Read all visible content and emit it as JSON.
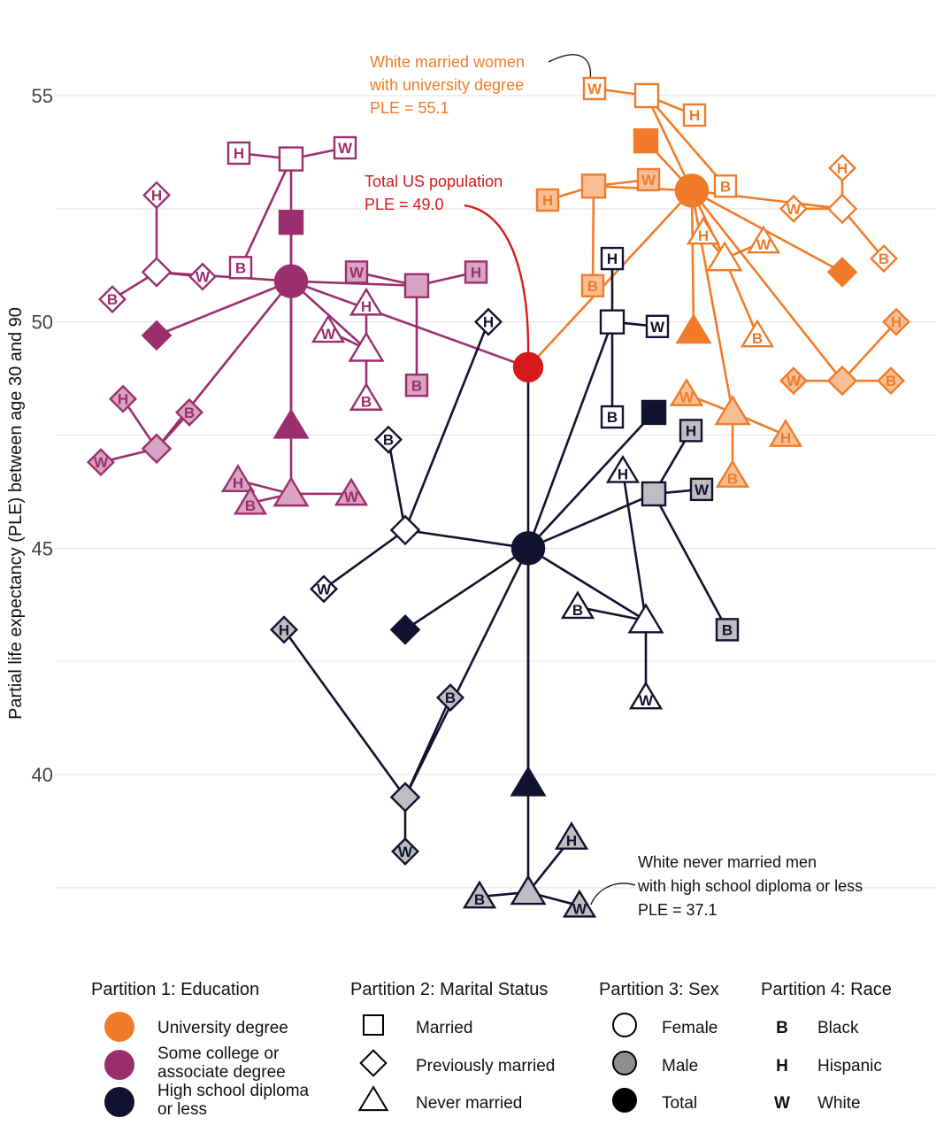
{
  "chart_data": {
    "type": "tree-scatter",
    "ylabel": "Partial life expectancy (PLE) between age 30 and 90",
    "ylim": [
      36.5,
      56.5
    ],
    "yticks": [
      40,
      45,
      50,
      55
    ],
    "grid": true,
    "colors": {
      "university": "#F07C29",
      "some_college": "#9B2F6E",
      "high_school": "#121230",
      "total_us": "#D7191C",
      "male_fill": "#BDBDC2"
    },
    "nodes": [
      {
        "id": "root",
        "y": 49.0,
        "lvl": 0,
        "g": "total"
      },
      {
        "id": "U",
        "y": 52.9,
        "lvl": 1,
        "g": "U"
      },
      {
        "id": "S",
        "y": 50.9,
        "lvl": 1,
        "g": "S"
      },
      {
        "id": "HS",
        "y": 45.0,
        "lvl": 1,
        "g": "HS"
      },
      {
        "id": "U_M",
        "y": 54.0,
        "lvl": 2,
        "g": "U",
        "m": "M"
      },
      {
        "id": "U_P",
        "y": 51.1,
        "lvl": 2,
        "g": "U",
        "m": "P"
      },
      {
        "id": "U_N",
        "y": 49.8,
        "lvl": 2,
        "g": "U",
        "m": "N"
      },
      {
        "id": "U_MF",
        "y": 55.0,
        "lvl": 3,
        "g": "U",
        "m": "M",
        "s": "F"
      },
      {
        "id": "U_MM",
        "y": 53.0,
        "lvl": 3,
        "g": "U",
        "m": "M",
        "s": "M"
      },
      {
        "id": "U_PF",
        "y": 52.5,
        "lvl": 3,
        "g": "U",
        "m": "P",
        "s": "F"
      },
      {
        "id": "U_PM",
        "y": 48.7,
        "lvl": 3,
        "g": "U",
        "m": "P",
        "s": "M"
      },
      {
        "id": "U_NF",
        "y": 51.4,
        "lvl": 3,
        "g": "U",
        "m": "N",
        "s": "F"
      },
      {
        "id": "U_NM",
        "y": 48.0,
        "lvl": 3,
        "g": "U",
        "m": "N",
        "s": "M"
      },
      {
        "id": "U_MF_W",
        "y": 55.1,
        "lvl": 4,
        "g": "U",
        "m": "M",
        "s": "F",
        "r": "W"
      },
      {
        "id": "U_MF_H",
        "y": 54.6,
        "lvl": 4,
        "g": "U",
        "m": "M",
        "s": "F",
        "r": "H"
      },
      {
        "id": "U_MF_B",
        "y": 53.0,
        "lvl": 4,
        "g": "U",
        "m": "M",
        "s": "F",
        "r": "B"
      },
      {
        "id": "U_MM_W",
        "y": 53.2,
        "lvl": 4,
        "g": "U",
        "m": "M",
        "s": "M",
        "r": "W"
      },
      {
        "id": "U_MM_H",
        "y": 52.7,
        "lvl": 4,
        "g": "U",
        "m": "M",
        "s": "M",
        "r": "H"
      },
      {
        "id": "U_MM_B",
        "y": 50.8,
        "lvl": 4,
        "g": "U",
        "m": "M",
        "s": "M",
        "r": "B"
      },
      {
        "id": "U_PF_H",
        "y": 53.4,
        "lvl": 4,
        "g": "U",
        "m": "P",
        "s": "F",
        "r": "H"
      },
      {
        "id": "U_PF_W",
        "y": 52.5,
        "lvl": 4,
        "g": "U",
        "m": "P",
        "s": "F",
        "r": "W"
      },
      {
        "id": "U_PF_B",
        "y": 51.4,
        "lvl": 4,
        "g": "U",
        "m": "P",
        "s": "F",
        "r": "B"
      },
      {
        "id": "U_PM_H",
        "y": 50.0,
        "lvl": 4,
        "g": "U",
        "m": "P",
        "s": "M",
        "r": "H"
      },
      {
        "id": "U_PM_W",
        "y": 48.7,
        "lvl": 4,
        "g": "U",
        "m": "P",
        "s": "M",
        "r": "W"
      },
      {
        "id": "U_PM_B",
        "y": 48.7,
        "lvl": 4,
        "g": "U",
        "m": "P",
        "s": "M",
        "r": "B"
      },
      {
        "id": "U_NF_H",
        "y": 52.0,
        "lvl": 4,
        "g": "U",
        "m": "N",
        "s": "F",
        "r": "H"
      },
      {
        "id": "U_NF_W",
        "y": 51.8,
        "lvl": 4,
        "g": "U",
        "m": "N",
        "s": "F",
        "r": "W"
      },
      {
        "id": "U_NF_B",
        "y": 49.7,
        "lvl": 4,
        "g": "U",
        "m": "N",
        "s": "F",
        "r": "B"
      },
      {
        "id": "U_NM_W",
        "y": 48.4,
        "lvl": 4,
        "g": "U",
        "m": "N",
        "s": "M",
        "r": "W"
      },
      {
        "id": "U_NM_H",
        "y": 47.5,
        "lvl": 4,
        "g": "U",
        "m": "N",
        "s": "M",
        "r": "H"
      },
      {
        "id": "U_NM_B",
        "y": 46.6,
        "lvl": 4,
        "g": "U",
        "m": "N",
        "s": "M",
        "r": "B"
      },
      {
        "id": "S_M",
        "y": 52.2,
        "lvl": 2,
        "g": "S",
        "m": "M"
      },
      {
        "id": "S_P",
        "y": 49.7,
        "lvl": 2,
        "g": "S",
        "m": "P"
      },
      {
        "id": "S_N",
        "y": 47.7,
        "lvl": 2,
        "g": "S",
        "m": "N"
      },
      {
        "id": "S_MF",
        "y": 53.6,
        "lvl": 3,
        "g": "S",
        "m": "M",
        "s": "F"
      },
      {
        "id": "S_MM",
        "y": 50.8,
        "lvl": 3,
        "g": "S",
        "m": "M",
        "s": "M"
      },
      {
        "id": "S_PF",
        "y": 51.1,
        "lvl": 3,
        "g": "S",
        "m": "P",
        "s": "F"
      },
      {
        "id": "S_PM",
        "y": 47.2,
        "lvl": 3,
        "g": "S",
        "m": "P",
        "s": "M"
      },
      {
        "id": "S_NF",
        "y": 49.4,
        "lvl": 3,
        "g": "S",
        "m": "N",
        "s": "F"
      },
      {
        "id": "S_NM",
        "y": 46.2,
        "lvl": 3,
        "g": "S",
        "m": "N",
        "s": "M"
      },
      {
        "id": "S_MF_H",
        "y": 53.7,
        "lvl": 4,
        "g": "S",
        "m": "M",
        "s": "F",
        "r": "H"
      },
      {
        "id": "S_MF_W",
        "y": 53.9,
        "lvl": 4,
        "g": "S",
        "m": "M",
        "s": "F",
        "r": "W"
      },
      {
        "id": "S_MF_B",
        "y": 51.2,
        "lvl": 4,
        "g": "S",
        "m": "M",
        "s": "F",
        "r": "B"
      },
      {
        "id": "S_MM_W",
        "y": 51.1,
        "lvl": 4,
        "g": "S",
        "m": "M",
        "s": "M",
        "r": "W"
      },
      {
        "id": "S_MM_H",
        "y": 51.1,
        "lvl": 4,
        "g": "S",
        "m": "M",
        "s": "M",
        "r": "H"
      },
      {
        "id": "S_MM_B",
        "y": 48.6,
        "lvl": 4,
        "g": "S",
        "m": "M",
        "s": "M",
        "r": "B"
      },
      {
        "id": "S_PF_H",
        "y": 52.8,
        "lvl": 4,
        "g": "S",
        "m": "P",
        "s": "F",
        "r": "H"
      },
      {
        "id": "S_PF_B",
        "y": 50.5,
        "lvl": 4,
        "g": "S",
        "m": "P",
        "s": "F",
        "r": "B"
      },
      {
        "id": "S_PF_W",
        "y": 51.0,
        "lvl": 4,
        "g": "S",
        "m": "P",
        "s": "F",
        "r": "W"
      },
      {
        "id": "S_PM_H",
        "y": 48.3,
        "lvl": 4,
        "g": "S",
        "m": "P",
        "s": "M",
        "r": "H"
      },
      {
        "id": "S_PM_B",
        "y": 48.0,
        "lvl": 4,
        "g": "S",
        "m": "P",
        "s": "M",
        "r": "B"
      },
      {
        "id": "S_PM_W",
        "y": 46.9,
        "lvl": 4,
        "g": "S",
        "m": "P",
        "s": "M",
        "r": "W"
      },
      {
        "id": "S_NF_H",
        "y": 50.4,
        "lvl": 4,
        "g": "S",
        "m": "N",
        "s": "F",
        "r": "H"
      },
      {
        "id": "S_NF_W",
        "y": 49.8,
        "lvl": 4,
        "g": "S",
        "m": "N",
        "s": "F",
        "r": "W"
      },
      {
        "id": "S_NF_B",
        "y": 48.3,
        "lvl": 4,
        "g": "S",
        "m": "N",
        "s": "F",
        "r": "B"
      },
      {
        "id": "S_NM_H",
        "y": 46.5,
        "lvl": 4,
        "g": "S",
        "m": "N",
        "s": "M",
        "r": "H"
      },
      {
        "id": "S_NM_B",
        "y": 46.0,
        "lvl": 4,
        "g": "S",
        "m": "N",
        "s": "M",
        "r": "B"
      },
      {
        "id": "S_NM_W",
        "y": 46.2,
        "lvl": 4,
        "g": "S",
        "m": "N",
        "s": "M",
        "r": "W"
      },
      {
        "id": "HS_M",
        "y": 48.0,
        "lvl": 2,
        "g": "HS",
        "m": "M"
      },
      {
        "id": "HS_P",
        "y": 43.2,
        "lvl": 2,
        "g": "HS",
        "m": "P"
      },
      {
        "id": "HS_N",
        "y": 39.8,
        "lvl": 2,
        "g": "HS",
        "m": "N"
      },
      {
        "id": "HS_MF",
        "y": 50.0,
        "lvl": 3,
        "g": "HS",
        "m": "M",
        "s": "F"
      },
      {
        "id": "HS_MM",
        "y": 46.2,
        "lvl": 3,
        "g": "HS",
        "m": "M",
        "s": "M"
      },
      {
        "id": "HS_PF",
        "y": 45.4,
        "lvl": 3,
        "g": "HS",
        "m": "P",
        "s": "F"
      },
      {
        "id": "HS_PM",
        "y": 39.5,
        "lvl": 3,
        "g": "HS",
        "m": "P",
        "s": "M"
      },
      {
        "id": "HS_NF",
        "y": 43.4,
        "lvl": 3,
        "g": "HS",
        "m": "N",
        "s": "F"
      },
      {
        "id": "HS_NM",
        "y": 37.4,
        "lvl": 3,
        "g": "HS",
        "m": "N",
        "s": "M"
      },
      {
        "id": "HS_MF_H",
        "y": 51.4,
        "lvl": 4,
        "g": "HS",
        "m": "M",
        "s": "F",
        "r": "H"
      },
      {
        "id": "HS_MF_W",
        "y": 49.9,
        "lvl": 4,
        "g": "HS",
        "m": "M",
        "s": "F",
        "r": "W"
      },
      {
        "id": "HS_MF_B",
        "y": 47.9,
        "lvl": 4,
        "g": "HS",
        "m": "M",
        "s": "F",
        "r": "B"
      },
      {
        "id": "HS_MM_H",
        "y": 47.6,
        "lvl": 4,
        "g": "HS",
        "m": "M",
        "s": "M",
        "r": "H"
      },
      {
        "id": "HS_MM_W",
        "y": 46.3,
        "lvl": 4,
        "g": "HS",
        "m": "M",
        "s": "M",
        "r": "W"
      },
      {
        "id": "HS_MM_B",
        "y": 43.2,
        "lvl": 4,
        "g": "HS",
        "m": "M",
        "s": "M",
        "r": "B"
      },
      {
        "id": "HS_PF_H",
        "y": 50.0,
        "lvl": 4,
        "g": "HS",
        "m": "P",
        "s": "F",
        "r": "H"
      },
      {
        "id": "HS_PF_B",
        "y": 47.4,
        "lvl": 4,
        "g": "HS",
        "m": "P",
        "s": "F",
        "r": "B"
      },
      {
        "id": "HS_PF_W",
        "y": 44.1,
        "lvl": 4,
        "g": "HS",
        "m": "P",
        "s": "F",
        "r": "W"
      },
      {
        "id": "HS_PM_H",
        "y": 43.2,
        "lvl": 4,
        "g": "HS",
        "m": "P",
        "s": "M",
        "r": "H"
      },
      {
        "id": "HS_PM_B",
        "y": 41.7,
        "lvl": 4,
        "g": "HS",
        "m": "P",
        "s": "M",
        "r": "B"
      },
      {
        "id": "HS_PM_W",
        "y": 38.3,
        "lvl": 4,
        "g": "HS",
        "m": "P",
        "s": "M",
        "r": "W"
      },
      {
        "id": "HS_NF_H",
        "y": 46.7,
        "lvl": 4,
        "g": "HS",
        "m": "N",
        "s": "F",
        "r": "H"
      },
      {
        "id": "HS_NF_B",
        "y": 43.7,
        "lvl": 4,
        "g": "HS",
        "m": "N",
        "s": "F",
        "r": "B"
      },
      {
        "id": "HS_NF_W",
        "y": 41.7,
        "lvl": 4,
        "g": "HS",
        "m": "N",
        "s": "F",
        "r": "W"
      },
      {
        "id": "HS_NM_H",
        "y": 38.6,
        "lvl": 4,
        "g": "HS",
        "m": "N",
        "s": "M",
        "r": "H"
      },
      {
        "id": "HS_NM_B",
        "y": 37.3,
        "lvl": 4,
        "g": "HS",
        "m": "N",
        "s": "M",
        "r": "B"
      },
      {
        "id": "HS_NM_W",
        "y": 37.1,
        "lvl": 4,
        "g": "HS",
        "m": "N",
        "s": "M",
        "r": "W"
      }
    ],
    "annotations": [
      {
        "id": "white-married-women",
        "lines": [
          "White married women",
          "with university degree",
          "PLE = 55.1"
        ],
        "color": "#F07C29"
      },
      {
        "id": "total-us",
        "lines": [
          "Total US population",
          "PLE = 49.0"
        ],
        "color": "#D7191C"
      },
      {
        "id": "white-never-married-men",
        "lines": [
          "White never married men",
          "with high school diploma or less",
          "PLE = 37.1"
        ],
        "color": "#111111"
      }
    ]
  },
  "legend": {
    "education": {
      "title": "Partition 1: Education",
      "items": [
        {
          "label": [
            "University degree"
          ],
          "color": "#F07C29"
        },
        {
          "label": [
            "Some college or",
            "associate degree"
          ],
          "color": "#9B2F6E"
        },
        {
          "label": [
            "High school diploma",
            "or less"
          ],
          "color": "#121230"
        }
      ]
    },
    "marital": {
      "title": "Partition 2: Marital Status",
      "items": [
        {
          "label": "Married",
          "shape": "square"
        },
        {
          "label": "Previously married",
          "shape": "diamond"
        },
        {
          "label": "Never married",
          "shape": "triangle"
        }
      ]
    },
    "sex": {
      "title": "Partition 3: Sex",
      "items": [
        {
          "label": "Female",
          "fill": "#ffffff"
        },
        {
          "label": "Male",
          "fill": "#8f8f8f"
        },
        {
          "label": "Total",
          "fill": "#000000"
        }
      ]
    },
    "race": {
      "title": "Partition 4: Race",
      "items": [
        {
          "code": "B",
          "label": "Black"
        },
        {
          "code": "H",
          "label": "Hispanic"
        },
        {
          "code": "W",
          "label": "White"
        }
      ]
    }
  }
}
